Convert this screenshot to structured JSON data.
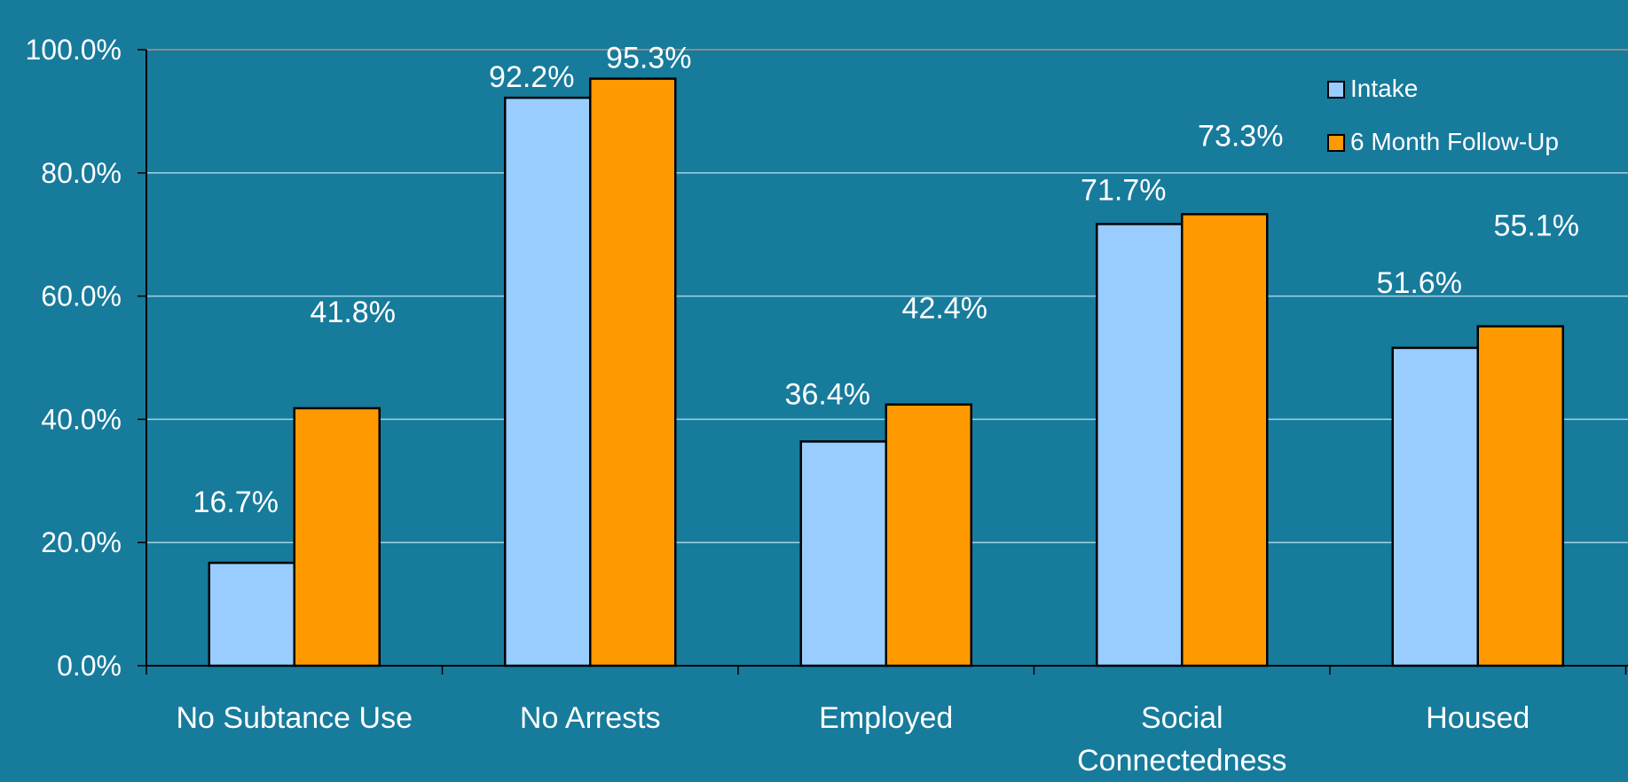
{
  "chart_data": {
    "type": "bar",
    "categories": [
      "No Subtance Use",
      "No Arrests",
      "Employed",
      "Social Connectedness",
      "Housed"
    ],
    "series": [
      {
        "name": "Intake",
        "values": [
          16.7,
          92.2,
          36.4,
          71.7,
          51.6
        ],
        "labels": [
          "16.7%",
          "92.2%",
          "36.4%",
          "71.7%",
          "51.6%"
        ],
        "color": "#99ccff"
      },
      {
        "name": "6 Month Follow-Up",
        "values": [
          41.8,
          95.3,
          42.4,
          73.3,
          55.1
        ],
        "labels": [
          "41.8%",
          "95.3%",
          "42.4%",
          "73.3%",
          "55.1%"
        ],
        "color": "#ff9900"
      }
    ],
    "ylim": [
      0,
      100
    ],
    "yticks": [
      0,
      20,
      40,
      60,
      80,
      100
    ],
    "ytick_labels": [
      "0.0%",
      "20.0%",
      "40.0%",
      "60.0%",
      "80.0%",
      "100.0%"
    ],
    "grid": true,
    "legend_position": "top-right",
    "background": "#177b9c",
    "gridline_color": "#9fd3e4"
  }
}
